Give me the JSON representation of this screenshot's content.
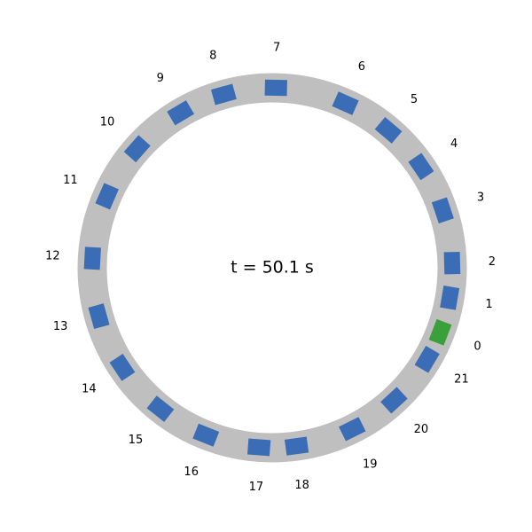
{
  "colors": {
    "track": "#bfbfbf",
    "background": "#ffffff",
    "car": "#3a6db5",
    "highlight_car": "#3aa03a"
  },
  "time_label": "t = 50.1 s",
  "cars": [
    {
      "id": "0",
      "angle_deg": -21.0,
      "highlight": true
    },
    {
      "id": "1",
      "angle_deg": -9.6
    },
    {
      "id": "2",
      "angle_deg": 1.5
    },
    {
      "id": "3",
      "angle_deg": 18.6
    },
    {
      "id": "4",
      "angle_deg": 34.2
    },
    {
      "id": "5",
      "angle_deg": 49.8
    },
    {
      "id": "6",
      "angle_deg": 66.0
    },
    {
      "id": "7",
      "angle_deg": 88.8
    },
    {
      "id": "8",
      "angle_deg": 105.6
    },
    {
      "id": "9",
      "angle_deg": 120.6
    },
    {
      "id": "10",
      "angle_deg": 138.6
    },
    {
      "id": "11",
      "angle_deg": 156.6
    },
    {
      "id": "12",
      "angle_deg": 177.0
    },
    {
      "id": "13",
      "angle_deg": 195.6
    },
    {
      "id": "14",
      "angle_deg": 213.6
    },
    {
      "id": "15",
      "angle_deg": 231.6
    },
    {
      "id": "16",
      "angle_deg": 248.4
    },
    {
      "id": "17",
      "angle_deg": 265.8
    },
    {
      "id": "18",
      "angle_deg": 277.8
    },
    {
      "id": "19",
      "angle_deg": 296.4
    },
    {
      "id": "20",
      "angle_deg": 312.6
    },
    {
      "id": "21",
      "angle_deg": 329.4
    }
  ]
}
